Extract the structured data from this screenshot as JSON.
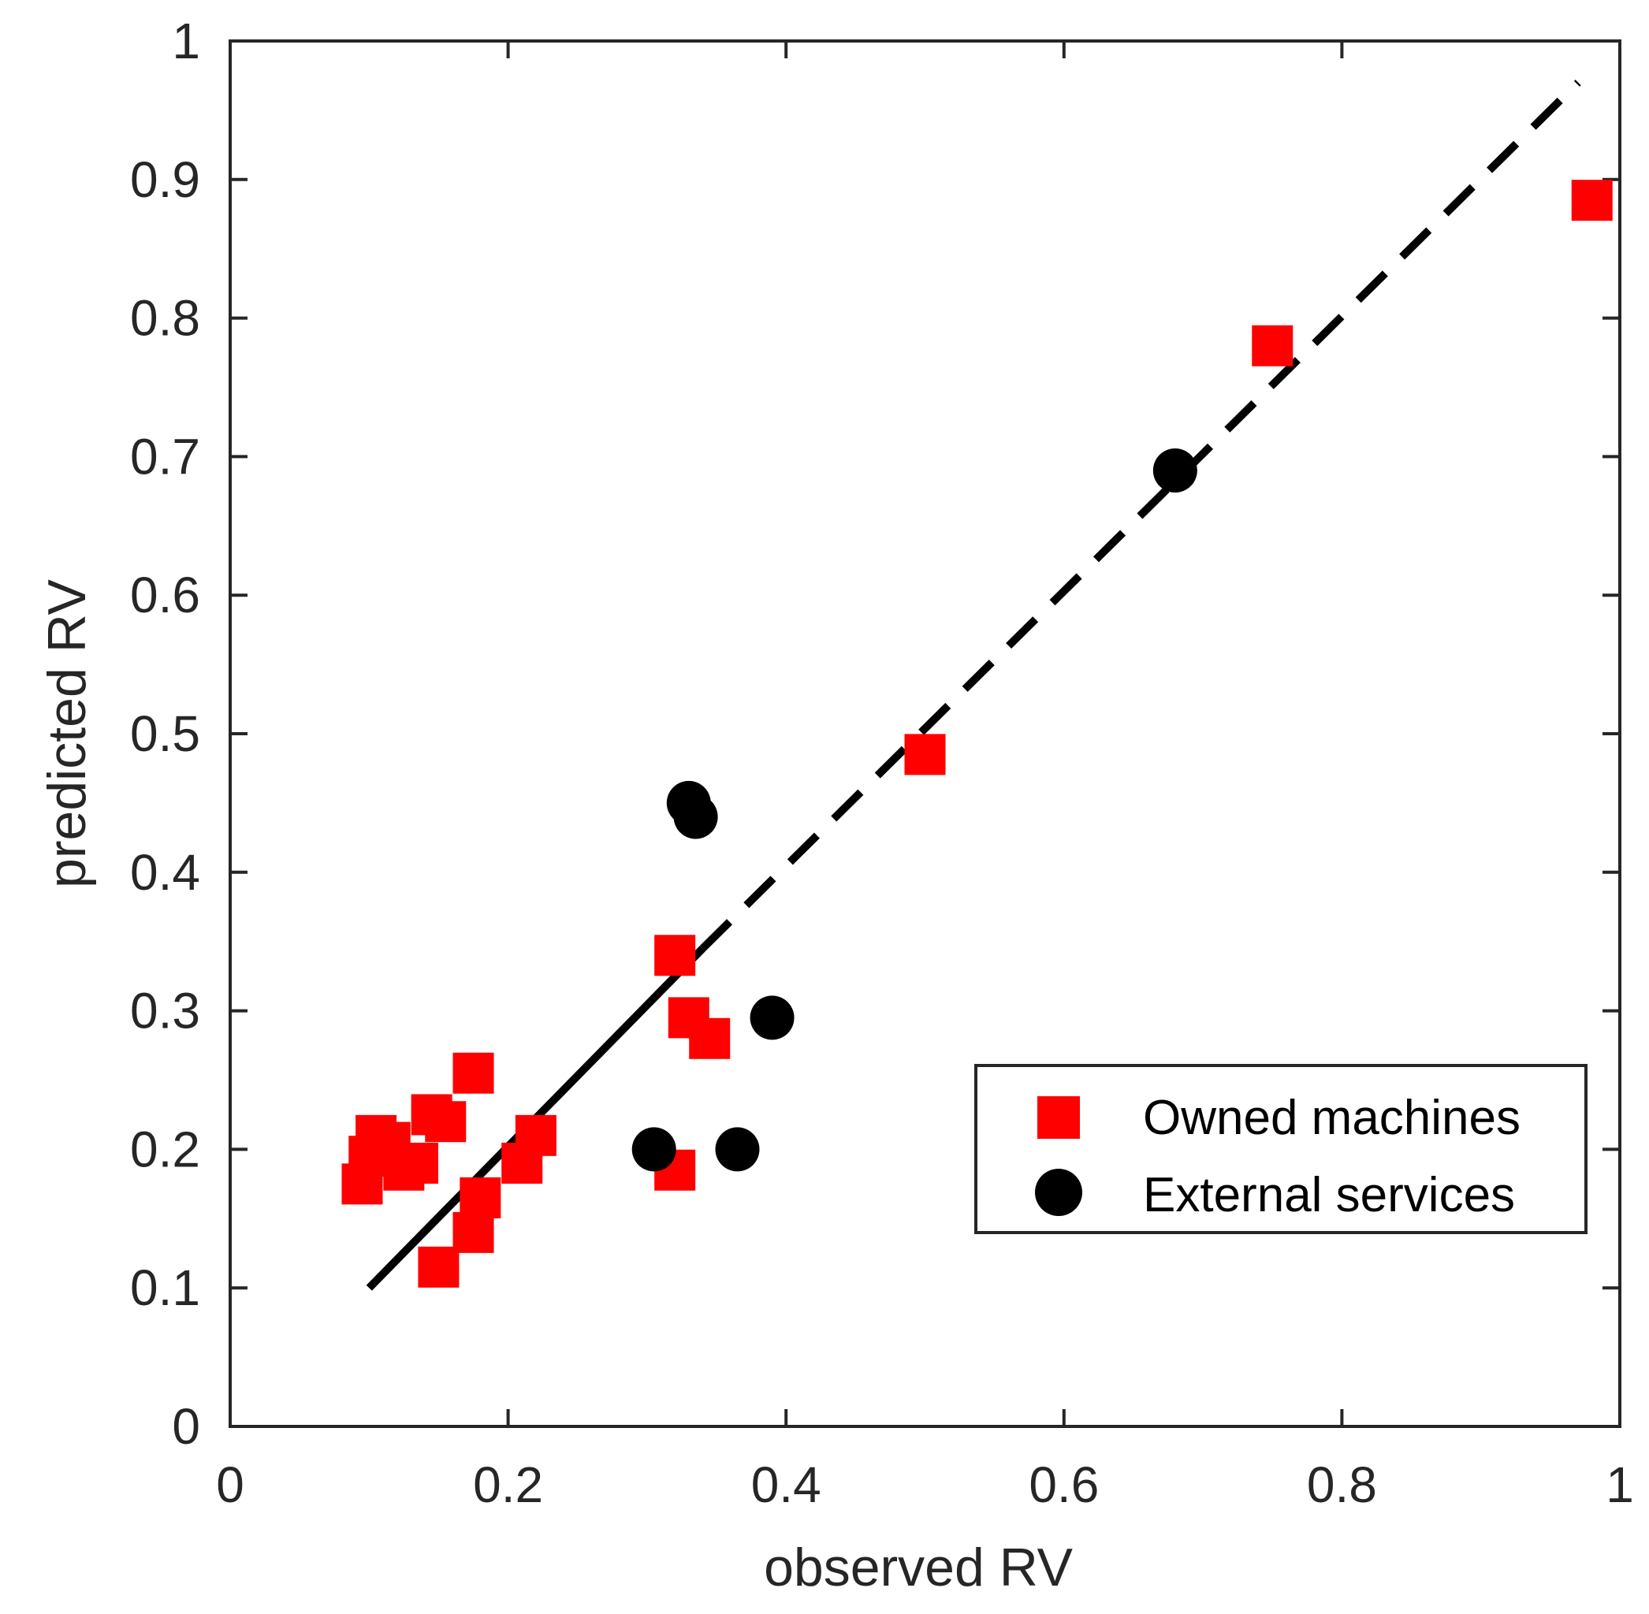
{
  "chart_data": {
    "type": "scatter",
    "xlabel": "observed RV",
    "ylabel": "predicted RV",
    "xlim": [
      0,
      1
    ],
    "ylim": [
      0,
      1
    ],
    "x_ticks": [
      0,
      0.2,
      0.4,
      0.6,
      0.8,
      1
    ],
    "x_tick_labels": [
      "0",
      "0.2",
      "0.4",
      "0.6",
      "0.8",
      "1"
    ],
    "y_ticks": [
      0,
      0.1,
      0.2,
      0.3,
      0.4,
      0.5,
      0.6,
      0.7,
      0.8,
      0.9,
      1
    ],
    "y_tick_labels": [
      "0",
      "0.1",
      "0.2",
      "0.3",
      "0.4",
      "0.5",
      "0.6",
      "0.7",
      "0.8",
      "0.9",
      "1"
    ],
    "grid": false,
    "legend_position": "lower-right",
    "series": [
      {
        "name": "Owned machines",
        "marker": "square",
        "color": "#ff0000",
        "points": [
          [
            0.095,
            0.175
          ],
          [
            0.1,
            0.195
          ],
          [
            0.105,
            0.21
          ],
          [
            0.115,
            0.205
          ],
          [
            0.125,
            0.185
          ],
          [
            0.135,
            0.19
          ],
          [
            0.145,
            0.225
          ],
          [
            0.155,
            0.22
          ],
          [
            0.15,
            0.115
          ],
          [
            0.175,
            0.255
          ],
          [
            0.175,
            0.14
          ],
          [
            0.18,
            0.165
          ],
          [
            0.21,
            0.19
          ],
          [
            0.22,
            0.21
          ],
          [
            0.32,
            0.185
          ],
          [
            0.32,
            0.34
          ],
          [
            0.33,
            0.295
          ],
          [
            0.345,
            0.28
          ],
          [
            0.5,
            0.485
          ],
          [
            0.75,
            0.78
          ],
          [
            0.98,
            0.885
          ]
        ]
      },
      {
        "name": "External services",
        "marker": "circle",
        "color": "#000000",
        "points": [
          [
            0.305,
            0.2
          ],
          [
            0.33,
            0.45
          ],
          [
            0.335,
            0.44
          ],
          [
            0.365,
            0.2
          ],
          [
            0.39,
            0.295
          ],
          [
            0.68,
            0.69
          ]
        ]
      }
    ],
    "lines": [
      {
        "name": "fit-solid",
        "style": "solid",
        "color": "#000000",
        "x": [
          0.1,
          0.34
        ],
        "y": [
          0.1,
          0.345
        ]
      },
      {
        "name": "fit-dashed",
        "style": "dashed",
        "color": "#000000",
        "x": [
          0.34,
          0.97
        ],
        "y": [
          0.345,
          0.97
        ]
      }
    ]
  }
}
